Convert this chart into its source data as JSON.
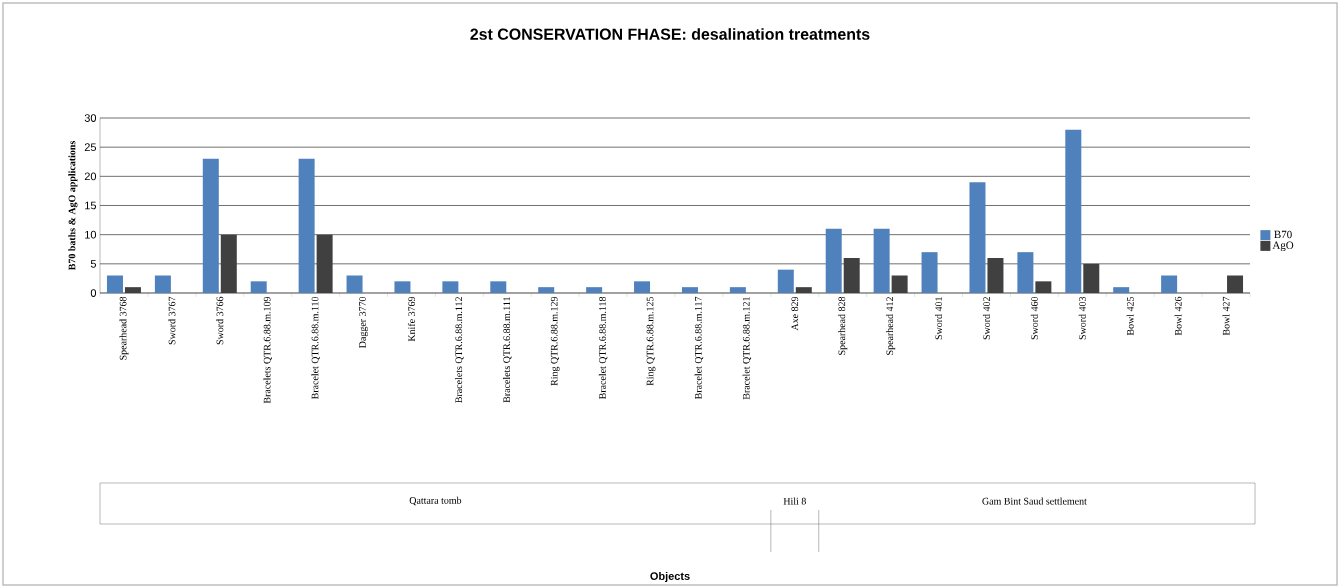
{
  "chart_data": {
    "type": "bar",
    "title": "2st CONSERVATION FHASE: desalination treatments",
    "ylabel": "B70 baths & AgO applications",
    "categories": [
      "Spearhead 3768",
      "Sword 3767",
      "Sword 3766",
      "Bracelets QTR.6.88.m.109",
      "Bracelet QTR.6.88.m.110",
      "Dagger 3770",
      "Knife 3769",
      "Bracelets QTR.6.88.m.112",
      "Bracelets QTR.6.88.m.111",
      "Ring QTR.6.88.m.129",
      "Bracelet QTR.6.88.m.118",
      "Ring QTR.6.88.m.125",
      "Bracelet QTR.6.88.m.117",
      "Bracelet QTR.6.88.m.121",
      "Axe 829",
      "Spearhead 828",
      "Spearhead 412",
      "Sword 401",
      "Sword 402",
      "Sword 460",
      "Sword 403",
      "Bowl 425",
      "Bowl 426",
      "Bowl 427"
    ],
    "series": [
      {
        "name": "B70",
        "color": "#4f81bd",
        "values": [
          3,
          3,
          23,
          2,
          23,
          3,
          2,
          2,
          2,
          1,
          1,
          2,
          1,
          1,
          4,
          11,
          11,
          7,
          19,
          7,
          28,
          1,
          3,
          0
        ]
      },
      {
        "name": "AgO",
        "color": "#404040",
        "values": [
          1,
          0,
          10,
          0,
          10,
          0,
          0,
          0,
          0,
          0,
          0,
          0,
          0,
          0,
          1,
          6,
          3,
          0,
          6,
          2,
          5,
          0,
          0,
          3
        ]
      }
    ],
    "ylim": [
      0,
      30
    ],
    "yticks": [
      0,
      5,
      10,
      15,
      20,
      25,
      30
    ],
    "grid": "y",
    "legend": "right",
    "annotations": [
      "Qattara tomb",
      "Hili 8",
      "Gam Bint Saud settlement",
      "Objects"
    ]
  }
}
